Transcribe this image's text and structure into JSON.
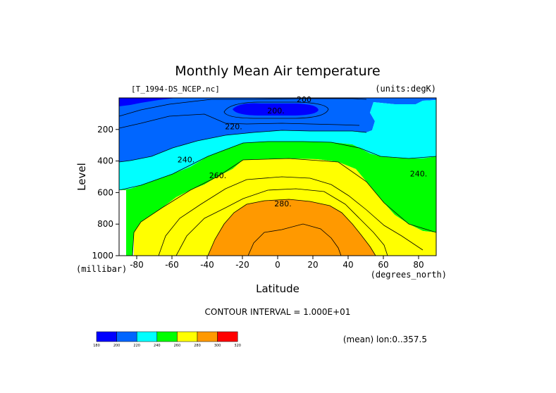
{
  "chart_data": {
    "type": "contour",
    "title": "Monthly Mean Air temperature",
    "file_label": "[T_1994-DS_NCEP.nc]",
    "units_label": "(units:degK)",
    "xlabel": "Latitude",
    "x_units": "(degrees_north)",
    "ylabel": "Level",
    "y_units": "(millibar)",
    "xlim": [
      -90,
      90
    ],
    "ylim": [
      0,
      1000
    ],
    "y_inverted": true,
    "x_ticks": [
      "-80",
      "-60",
      "-40",
      "-20",
      "0",
      "20",
      "40",
      "60",
      "80"
    ],
    "x_tick_values": [
      -80,
      -60,
      -40,
      -20,
      0,
      20,
      40,
      60,
      80
    ],
    "y_ticks": [
      "200",
      "400",
      "600",
      "800",
      "1000"
    ],
    "y_tick_values": [
      200,
      400,
      600,
      800,
      1000
    ],
    "contour_interval_text": "CONTOUR INTERVAL = 1.000E+01",
    "mean_note": "(mean) lon:0..357.5",
    "levels": [
      180,
      200,
      220,
      240,
      260,
      280,
      300,
      320
    ],
    "level_labels": [
      "180",
      "200",
      "220",
      "240",
      "260",
      "280",
      "300",
      "320"
    ],
    "colors": [
      "#0000ff",
      "#0066ff",
      "#00ffff",
      "#00ff00",
      "#ffff00",
      "#ff9900",
      "#ff0000"
    ],
    "contour_labels": [
      {
        "text": "200.",
        "lat": -1,
        "lev": 80
      },
      {
        "text": "220.",
        "lat": -25,
        "lev": 180
      },
      {
        "text": "240.",
        "lat": -52,
        "lev": 390
      },
      {
        "text": "260.",
        "lat": -34,
        "lev": 490
      },
      {
        "text": "280.",
        "lat": 3,
        "lev": 670
      },
      {
        "text": "240.",
        "lat": 80,
        "lev": 480
      },
      {
        "text": "200",
        "lat": 15,
        "lev": 10
      }
    ]
  }
}
